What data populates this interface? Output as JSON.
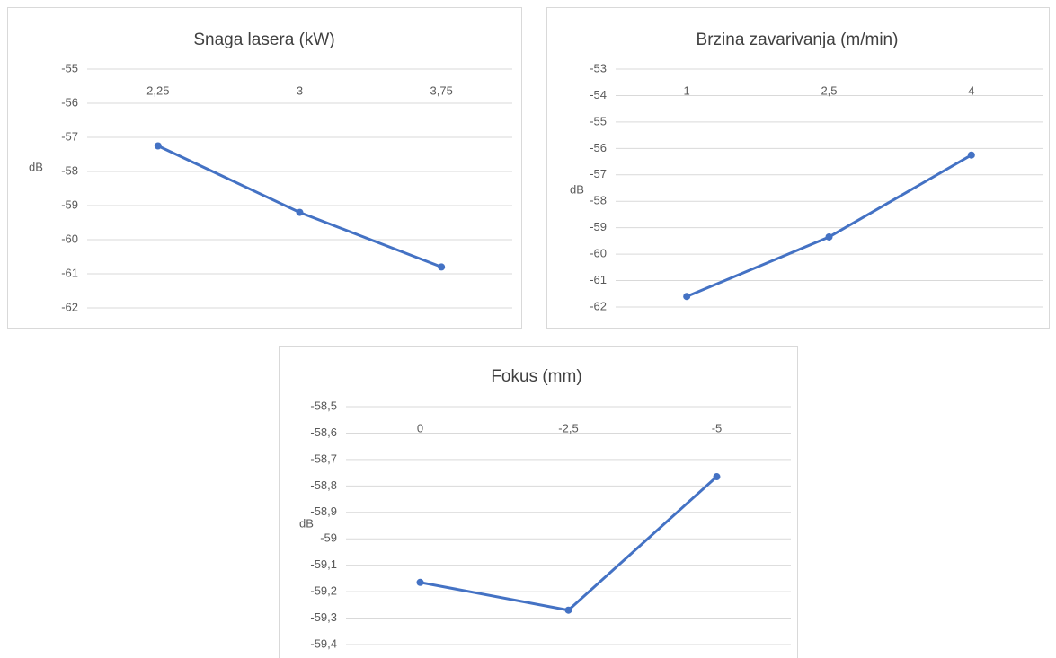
{
  "chart_data": [
    {
      "type": "line",
      "title": "Snaga lasera (kW)",
      "ylabel": "dB",
      "categories": [
        "2,25",
        "3",
        "3,75"
      ],
      "values": [
        -57.25,
        -59.2,
        -60.8
      ],
      "color": "#4472c4",
      "ylim": [
        -62,
        -55
      ],
      "yticks": [
        -55,
        -56,
        -57,
        -58,
        -59,
        -60,
        -61,
        -62
      ],
      "grid": true
    },
    {
      "type": "line",
      "title": "Brzina zavarivanja (m/min)",
      "ylabel": "dB",
      "categories": [
        "1",
        "2,5",
        "4"
      ],
      "values": [
        -61.6,
        -59.35,
        -56.25
      ],
      "color": "#4472c4",
      "ylim": [
        -62,
        -53
      ],
      "yticks": [
        -53,
        -54,
        -55,
        -56,
        -57,
        -58,
        -59,
        -60,
        -61,
        -62
      ],
      "grid": true
    },
    {
      "type": "line",
      "title": "Fokus (mm)",
      "ylabel": "dB",
      "categories": [
        "0",
        "-2,5",
        "-5"
      ],
      "values": [
        -59.165,
        -59.27,
        -58.765
      ],
      "color": "#4472c4",
      "ylim": [
        -59.4,
        -58.5
      ],
      "yticks": [
        {
          "value": -58.5,
          "label": "-58,5"
        },
        {
          "value": -58.6,
          "label": "-58,6"
        },
        {
          "value": -58.7,
          "label": "-58,7"
        },
        {
          "value": -58.8,
          "label": "-58,8"
        },
        {
          "value": -58.9,
          "label": "-58,9"
        },
        -59,
        {
          "value": -59.1,
          "label": "-59,1"
        },
        {
          "value": -59.2,
          "label": "-59,2"
        },
        {
          "value": -59.3,
          "label": "-59,3"
        },
        {
          "value": -59.4,
          "label": "-59,4"
        }
      ],
      "grid": true
    }
  ]
}
